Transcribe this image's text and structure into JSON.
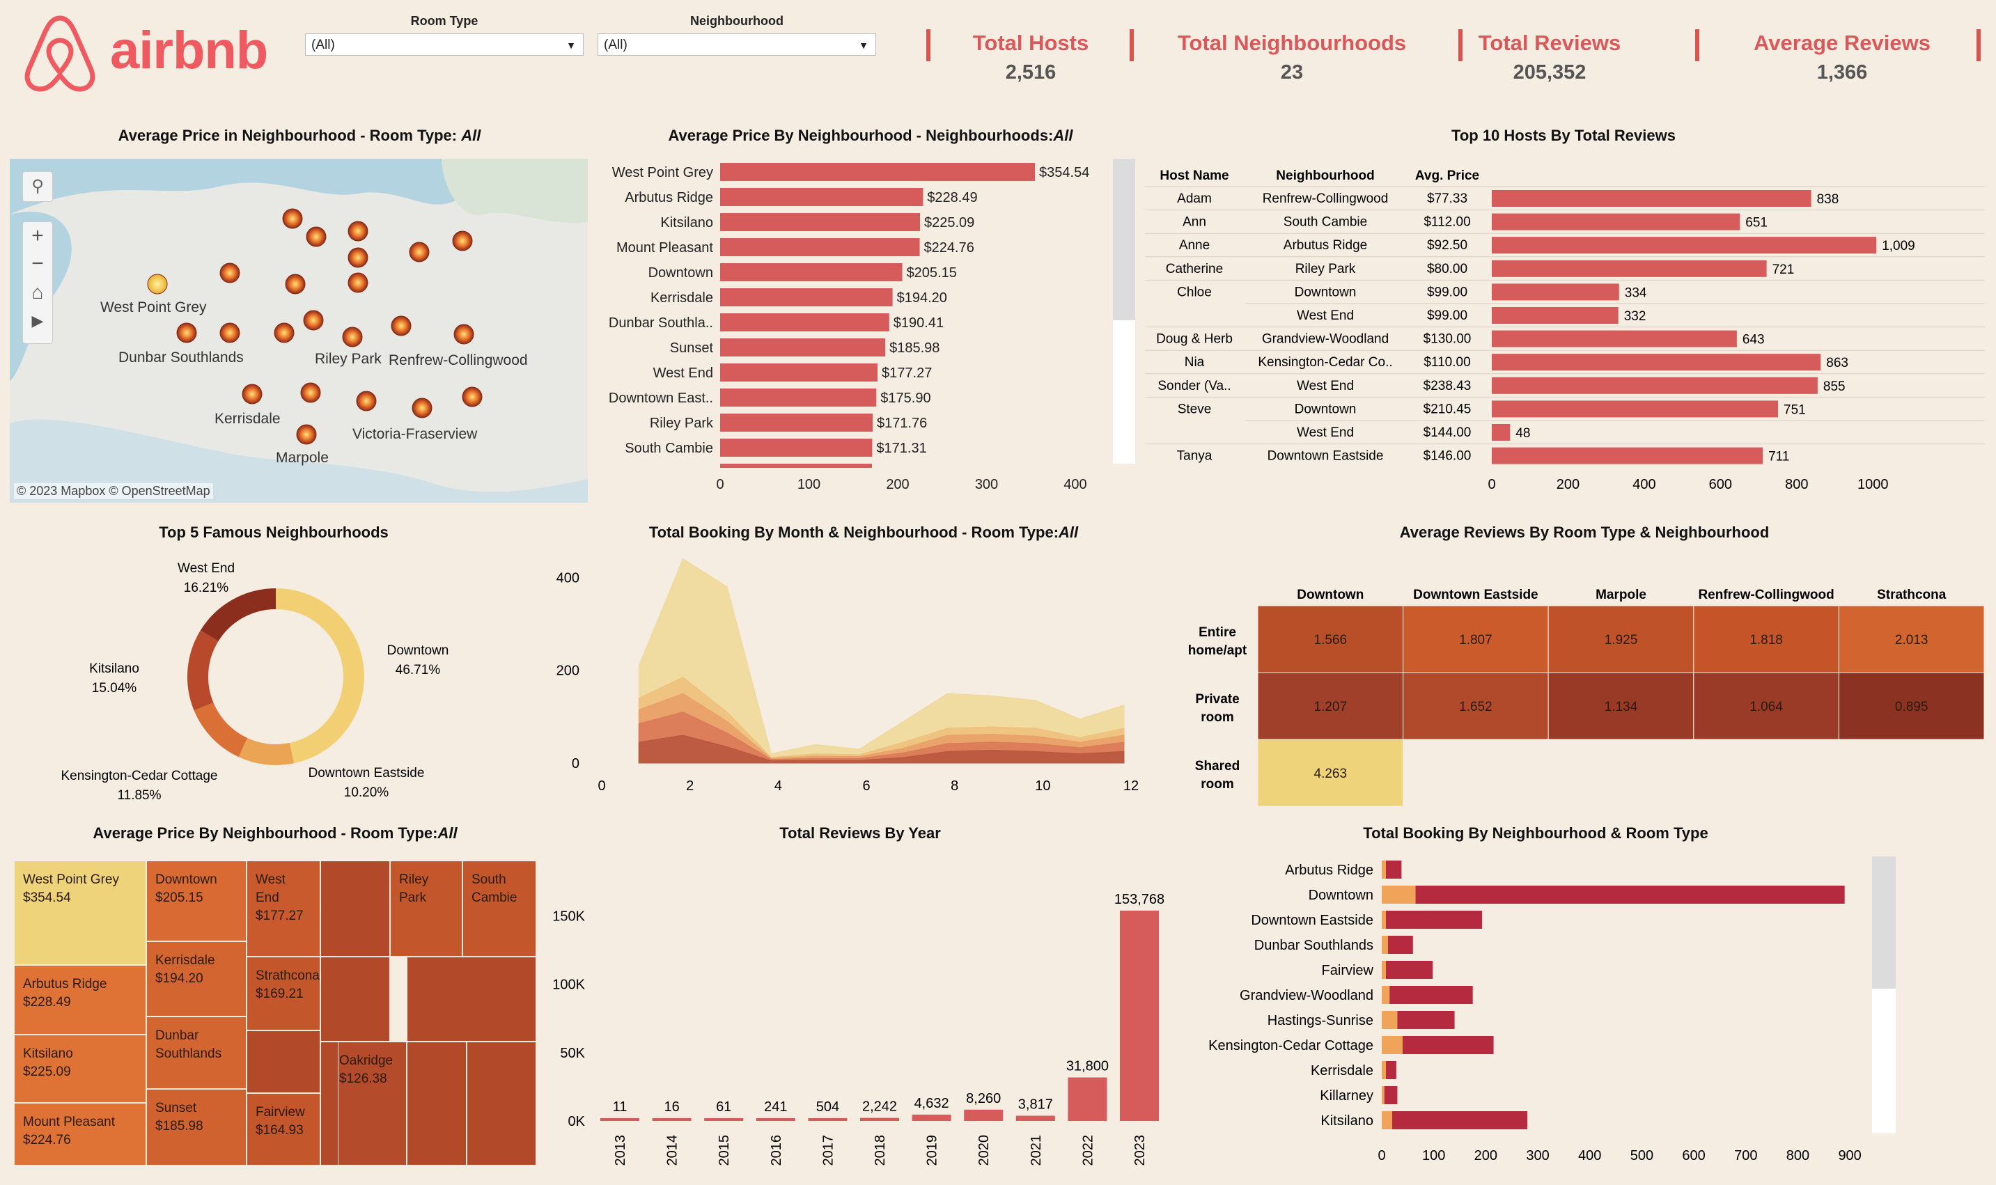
{
  "logo": {
    "text": "airbnb",
    "icon": "airbnb-logo-icon",
    "color": "#ee5a5f"
  },
  "filters": [
    {
      "label": "Room Type",
      "value": "(All)"
    },
    {
      "label": "Neighbourhood",
      "value": "(All)"
    }
  ],
  "kpis": [
    {
      "title": "Total Hosts",
      "value": "2,516"
    },
    {
      "title": "Total Neighbourhoods",
      "value": "23"
    },
    {
      "title": "Total Reviews",
      "value": "205,352"
    },
    {
      "title": "Average Reviews",
      "value": "1,366"
    }
  ],
  "titles": {
    "map": "Average Price in Neighbourhood - Room Type: ",
    "map_italic": "All",
    "avg_price_nb": "Average Price By Neighbourhood - Neighbourhoods:",
    "avg_price_nb_italic": "All",
    "top_hosts": "Top 10 Hosts By Total Reviews",
    "top5": "Top 5 Famous Neighbourhoods",
    "booking_month": "Total Booking By Month & Neighbourhood - Room Type:",
    "booking_month_italic": "All",
    "avg_reviews": "Average Reviews  By Room Type & Neighbourhood",
    "treemap": "Average Price By Neighbourhood - Room Type:",
    "treemap_italic": "All",
    "reviews_year": "Total Reviews By Year",
    "booking_nb": "Total Booking By Neighbourhood & Room Type"
  },
  "map": {
    "attribution": "© 2023 Mapbox  © OpenStreetMap",
    "labels": [
      "West Point Grey",
      "Dunbar Southlands",
      "Riley Park",
      "Renfrew-Collingwood",
      "Kerrisdale",
      "Victoria-Fraserview",
      "Marpole"
    ],
    "controls": [
      "search-icon",
      "zoom-in-icon",
      "zoom-out-icon",
      "home-icon",
      "play-icon"
    ],
    "zoom_in": "+",
    "zoom_out": "−",
    "home": "⌂",
    "play": "▶",
    "search": "⚲"
  },
  "chart_data": [
    {
      "id": "avg_price_by_neighbourhood",
      "type": "bar",
      "orientation": "horizontal",
      "categories": [
        "West Point Grey",
        "Arbutus Ridge",
        "Kitsilano",
        "Mount Pleasant",
        "Downtown",
        "Kerrisdale",
        "Dunbar Southla..",
        "Sunset",
        "West End",
        "Downtown East..",
        "Riley Park",
        "South Cambie"
      ],
      "values": [
        354.54,
        228.49,
        225.09,
        224.76,
        205.15,
        194.2,
        190.41,
        185.98,
        177.27,
        175.9,
        171.76,
        171.31
      ],
      "labels": [
        "$354.54",
        "$228.49",
        "$225.09",
        "$224.76",
        "$205.15",
        "$194.20",
        "$190.41",
        "$185.98",
        "$177.27",
        "$175.90",
        "$171.76",
        "$171.31"
      ],
      "xlim": [
        0,
        400
      ],
      "xticks": [
        "0",
        "100",
        "200",
        "300",
        "400"
      ],
      "color": "#d65c5c"
    },
    {
      "id": "top_10_hosts",
      "type": "table",
      "headers": [
        "Host Name",
        "Neighbourhood",
        "Avg. Price"
      ],
      "rows": [
        {
          "host": "Adam",
          "nb": "Renfrew-Collingwood",
          "price": "$77.33",
          "value": 838,
          "label": "838"
        },
        {
          "host": "Ann",
          "nb": "South Cambie",
          "price": "$112.00",
          "value": 651,
          "label": "651"
        },
        {
          "host": "Anne",
          "nb": "Arbutus Ridge",
          "price": "$92.50",
          "value": 1009,
          "label": "1,009"
        },
        {
          "host": "Catherine",
          "nb": "Riley Park",
          "price": "$80.00",
          "value": 721,
          "label": "721"
        },
        {
          "host": "Chloe",
          "nb": "Downtown",
          "price": "$99.00",
          "value": 334,
          "label": "334"
        },
        {
          "host": "",
          "nb": "West End",
          "price": "$99.00",
          "value": 332,
          "label": "332"
        },
        {
          "host": "Doug & Herb",
          "nb": "Grandview-Woodland",
          "price": "$130.00",
          "value": 643,
          "label": "643"
        },
        {
          "host": "Nia",
          "nb": "Kensington-Cedar Co..",
          "price": "$110.00",
          "value": 863,
          "label": "863"
        },
        {
          "host": "Sonder (Va..",
          "nb": "West End",
          "price": "$238.43",
          "value": 855,
          "label": "855"
        },
        {
          "host": "Steve",
          "nb": "Downtown",
          "price": "$210.45",
          "value": 751,
          "label": "751"
        },
        {
          "host": "",
          "nb": "West End",
          "price": "$144.00",
          "value": 48,
          "label": "48"
        },
        {
          "host": "Tanya",
          "nb": "Downtown Eastside",
          "price": "$146.00",
          "value": 711,
          "label": "711"
        }
      ],
      "xlim": [
        0,
        1100
      ],
      "xticks": [
        "0",
        "200",
        "400",
        "600",
        "800",
        "1000"
      ],
      "color": "#d65c5c"
    },
    {
      "id": "top5_neighbourhoods",
      "type": "pie",
      "donut": true,
      "slices": [
        {
          "name": "Downtown",
          "pct": 46.71,
          "label": "46.71%",
          "color": "#f2cf73"
        },
        {
          "name": "Downtown Eastside",
          "pct": 10.2,
          "label": "10.20%",
          "color": "#eba453"
        },
        {
          "name": "Kensington-Cedar Cottage",
          "pct": 11.85,
          "label": "11.85%",
          "color": "#db7037"
        },
        {
          "name": "Kitsilano",
          "pct": 15.04,
          "label": "15.04%",
          "color": "#b84a2b"
        },
        {
          "name": "West End",
          "pct": 16.21,
          "label": "16.21%",
          "color": "#8b2e1e"
        }
      ]
    },
    {
      "id": "booking_by_month",
      "type": "area",
      "x": [
        1,
        2,
        3,
        4,
        5,
        6,
        7,
        8,
        9,
        10,
        11,
        12
      ],
      "xlim": [
        0,
        12
      ],
      "xticks": [
        "0",
        "2",
        "4",
        "6",
        "8",
        "10",
        "12"
      ],
      "ylim": [
        0,
        450
      ],
      "yticks": [
        "0",
        "200",
        "400"
      ],
      "series": [
        {
          "color": "#f0d89a",
          "values": [
            210,
            440,
            380,
            20,
            40,
            30,
            90,
            150,
            145,
            135,
            95,
            125
          ]
        },
        {
          "color": "#eec07c",
          "values": [
            140,
            185,
            110,
            12,
            20,
            18,
            45,
            75,
            78,
            75,
            55,
            75
          ]
        },
        {
          "color": "#e9a068",
          "values": [
            115,
            150,
            90,
            10,
            15,
            14,
            32,
            60,
            62,
            58,
            45,
            60
          ]
        },
        {
          "color": "#d97a58",
          "values": [
            85,
            110,
            65,
            8,
            10,
            10,
            22,
            42,
            45,
            42,
            33,
            45
          ]
        },
        {
          "color": "#b8563f",
          "values": [
            45,
            60,
            35,
            5,
            6,
            6,
            12,
            25,
            28,
            25,
            20,
            25
          ]
        }
      ]
    },
    {
      "id": "avg_reviews_heatmap",
      "type": "heatmap",
      "columns": [
        "Downtown",
        "Downtown Eastside",
        "Marpole",
        "Renfrew-Collingwood",
        "Strathcona"
      ],
      "rows": [
        {
          "name": [
            "Entire",
            "home/apt"
          ],
          "values": [
            "1.566",
            "1.807",
            "1.925",
            "1.818",
            "2.013"
          ],
          "colors": [
            "#b84f28",
            "#cc5b2c",
            "#c0522a",
            "#c55529",
            "#d2642f"
          ]
        },
        {
          "name": [
            "Private",
            "room"
          ],
          "values": [
            "1.207",
            "1.652",
            "1.134",
            "1.064",
            "0.895"
          ],
          "colors": [
            "#a0402a",
            "#b04a2a",
            "#983a26",
            "#9a3b27",
            "#8c3222"
          ]
        },
        {
          "name": [
            "Shared",
            "room"
          ],
          "values": [
            "4.263",
            "",
            "",
            "",
            ""
          ],
          "colors": [
            "#efd37a",
            "",
            "",
            "",
            ""
          ]
        }
      ]
    },
    {
      "id": "avg_price_treemap",
      "type": "treemap",
      "cells": [
        {
          "name": "West Point Grey",
          "value": "$354.54",
          "color": "#efd37a"
        },
        {
          "name": "Arbutus Ridge",
          "value": "$228.49",
          "color": "#df7336"
        },
        {
          "name": "Kitsilano",
          "value": "$225.09",
          "color": "#df7336"
        },
        {
          "name": "Mount Pleasant",
          "value": "$224.76",
          "color": "#df7336"
        },
        {
          "name": "Downtown",
          "value": "$205.15",
          "color": "#d96a33"
        },
        {
          "name": "Kerrisdale",
          "value": "$194.20",
          "color": "#d26530"
        },
        {
          "name": "Dunbar Southlands",
          "value": "",
          "color": "#d26530"
        },
        {
          "name": "Sunset",
          "value": "$185.98",
          "color": "#cf622f"
        },
        {
          "name": "West End",
          "value": "$177.27",
          "color": "#c95a2d"
        },
        {
          "name": "Strathcona",
          "value": "$169.21",
          "color": "#c4562c"
        },
        {
          "name": "Fairview",
          "value": "$164.93",
          "color": "#c4562c"
        },
        {
          "name": "Riley Park",
          "value": "",
          "color": "#c4562c"
        },
        {
          "name": "South Cambie",
          "value": "",
          "color": "#c4562c"
        },
        {
          "name": "Oakridge",
          "value": "$126.38",
          "color": "#b44b2a"
        }
      ]
    },
    {
      "id": "reviews_by_year",
      "type": "bar",
      "categories": [
        "2013",
        "2014",
        "2015",
        "2016",
        "2017",
        "2018",
        "2019",
        "2020",
        "2021",
        "2022",
        "2023"
      ],
      "values": [
        11,
        16,
        61,
        241,
        504,
        2242,
        4632,
        8260,
        3817,
        31800,
        153768
      ],
      "labels": [
        "11",
        "16",
        "61",
        "241",
        "504",
        "2,242",
        "4,632",
        "8,260",
        "3,817",
        "31,800",
        "153,768"
      ],
      "ylim": [
        0,
        170000
      ],
      "yticks": [
        {
          "v": 0,
          "t": "0K"
        },
        {
          "v": 50000,
          "t": "50K"
        },
        {
          "v": 100000,
          "t": "100K"
        },
        {
          "v": 150000,
          "t": "150K"
        }
      ],
      "color": "#d65c5c"
    },
    {
      "id": "booking_by_neighbourhood_room",
      "type": "bar",
      "orientation": "horizontal",
      "stacked": true,
      "categories": [
        "Arbutus Ridge",
        "Downtown",
        "Downtown Eastside",
        "Dunbar Southlands",
        "Fairview",
        "Grandview-Woodland",
        "Hastings-Sunrise",
        "Kensington-Cedar Cottage",
        "Kerrisdale",
        "Killarney",
        "Kitsilano"
      ],
      "series": [
        {
          "color": "#f0a45a",
          "values": [
            8,
            65,
            8,
            12,
            8,
            15,
            30,
            40,
            8,
            5,
            20
          ]
        },
        {
          "color": "#b52a3e",
          "values": [
            30,
            825,
            185,
            48,
            90,
            160,
            110,
            175,
            20,
            25,
            260
          ]
        }
      ],
      "xlim": [
        0,
        940
      ],
      "xticks": [
        "0",
        "100",
        "200",
        "300",
        "400",
        "500",
        "600",
        "700",
        "800",
        "900"
      ]
    }
  ]
}
